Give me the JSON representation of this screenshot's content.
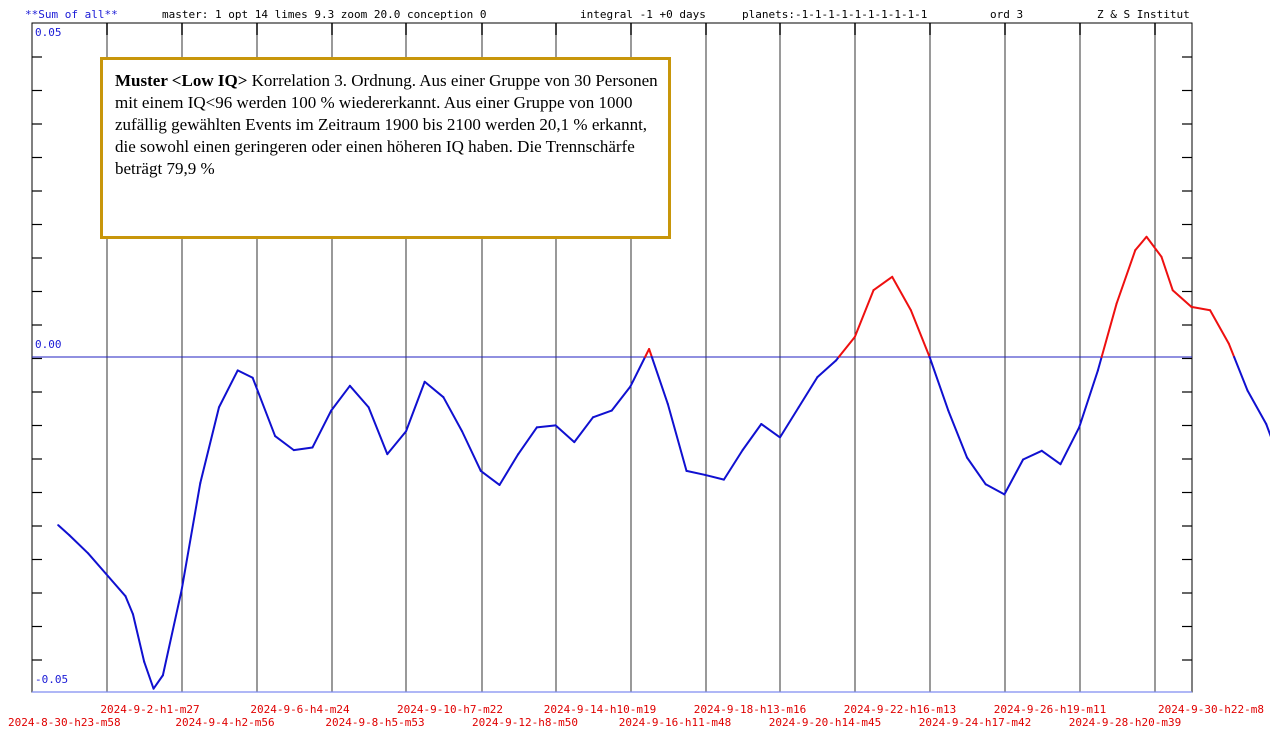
{
  "header": {
    "series_label": "**Sum of all**",
    "params": "master: 1  opt 14 limes 9.3 zoom 20.0 conception 0",
    "integral": "integral -1 +0 days",
    "planets": "planets:-1-1-1-1-1-1-1-1-1-1",
    "ord": "ord 3",
    "institute": "Z & S Institut"
  },
  "annotation": {
    "bold": "Muster <Low IQ>",
    "text": " Korrelation 3. Ordnung. Aus einer Gruppe von 30 Personen mit einem IQ<96  werden 100 % wiedererkannt. Aus einer Gruppe von 1000 zufällig gewählten Events im Zeitraum 1900 bis 2100 werden 20,1 % erkannt, die sowohl einen geringeren oder einen höheren IQ haben. Die Trennschärfe beträgt 79,9 %"
  },
  "colors": {
    "line_below": "#1010d0",
    "line_above": "#ee1010",
    "axis_labels": "#1a1ad6",
    "date_labels": "#e00000",
    "annotation_border": "#c8960a"
  },
  "chart_data": {
    "type": "line",
    "ylim": [
      -0.05,
      0.05
    ],
    "y_tick_labels": [
      "0.05",
      "0.00",
      "-0.05"
    ],
    "x_tick_labels": [
      "2024-8-30-h23-m58",
      "2024-9-2-h1-m27",
      "2024-9-4-h2-m56",
      "2024-9-6-h4-m24",
      "2024-9-8-h5-m53",
      "2024-9-10-h7-m22",
      "2024-9-12-h8-m50",
      "2024-9-14-h10-m19",
      "2024-9-16-h11-m48",
      "2024-9-18-h13-m16",
      "2024-9-20-h14-m45",
      "2024-9-22-h16-m13",
      "2024-9-24-h17-m42",
      "2024-9-26-h19-m11",
      "2024-9-28-h20-m39",
      "2024-9-30-h22-m8"
    ],
    "x_range": [
      "2024-8-30-h23-m58",
      "2024-9-30-h22-m8"
    ],
    "grid": "vertical lines at each date tick; horizontal zero line",
    "series": [
      {
        "color_rule": "red where value > 0, blue where value <= 0",
        "points": [
          {
            "t": 0.7,
            "v": -0.0251
          },
          {
            "t": 1.0,
            "v": -0.0266
          },
          {
            "t": 1.5,
            "v": -0.0293
          },
          {
            "t": 2.0,
            "v": -0.0325
          },
          {
            "t": 2.5,
            "v": -0.0357
          },
          {
            "t": 2.7,
            "v": -0.0384
          },
          {
            "t": 3.0,
            "v": -0.0455
          },
          {
            "t": 3.25,
            "v": -0.0495
          },
          {
            "t": 3.5,
            "v": -0.0475
          },
          {
            "t": 4.0,
            "v": -0.0348
          },
          {
            "t": 4.5,
            "v": -0.0188
          },
          {
            "t": 5.0,
            "v": -0.0075
          },
          {
            "t": 5.5,
            "v": -0.002
          },
          {
            "t": 5.9,
            "v": -0.0031
          },
          {
            "t": 6.5,
            "v": -0.0118
          },
          {
            "t": 7.0,
            "v": -0.0139
          },
          {
            "t": 7.5,
            "v": -0.0135
          },
          {
            "t": 8.0,
            "v": -0.008
          },
          {
            "t": 8.5,
            "v": -0.0043
          },
          {
            "t": 9.0,
            "v": -0.0075
          },
          {
            "t": 9.5,
            "v": -0.0145
          },
          {
            "t": 10.0,
            "v": -0.0111
          },
          {
            "t": 10.5,
            "v": -0.0037
          },
          {
            "t": 11.0,
            "v": -0.006
          },
          {
            "t": 11.5,
            "v": -0.0111
          },
          {
            "t": 12.0,
            "v": -0.017
          },
          {
            "t": 12.5,
            "v": -0.0191
          },
          {
            "t": 13.0,
            "v": -0.0145
          },
          {
            "t": 13.5,
            "v": -0.0105
          },
          {
            "t": 14.0,
            "v": -0.0102
          },
          {
            "t": 14.5,
            "v": -0.0127
          },
          {
            "t": 15.0,
            "v": -0.009
          },
          {
            "t": 15.5,
            "v": -0.008
          },
          {
            "t": 16.0,
            "v": -0.0044
          },
          {
            "t": 16.5,
            "v": 0.0012
          },
          {
            "t": 17.0,
            "v": -0.007
          },
          {
            "t": 17.5,
            "v": -0.017
          },
          {
            "t": 18.0,
            "v": -0.0176
          },
          {
            "t": 18.5,
            "v": -0.0183
          },
          {
            "t": 19.0,
            "v": -0.0139
          },
          {
            "t": 19.5,
            "v": -0.01
          },
          {
            "t": 20.0,
            "v": -0.012
          },
          {
            "t": 20.5,
            "v": -0.0075
          },
          {
            "t": 21.0,
            "v": -0.003
          },
          {
            "t": 21.5,
            "v": -0.0005
          },
          {
            "t": 22.0,
            "v": 0.003
          },
          {
            "t": 22.5,
            "v": 0.01
          },
          {
            "t": 23.0,
            "v": 0.012
          },
          {
            "t": 23.5,
            "v": 0.007
          },
          {
            "t": 24.0,
            "v": 0.0
          },
          {
            "t": 24.5,
            "v": -0.008
          },
          {
            "t": 25.0,
            "v": -0.015
          },
          {
            "t": 25.5,
            "v": -0.019
          },
          {
            "t": 26.0,
            "v": -0.0205
          },
          {
            "t": 26.5,
            "v": -0.0153
          },
          {
            "t": 27.0,
            "v": -0.014
          },
          {
            "t": 27.5,
            "v": -0.016
          },
          {
            "t": 28.0,
            "v": -0.0105
          },
          {
            "t": 28.5,
            "v": -0.002
          },
          {
            "t": 29.0,
            "v": 0.008
          },
          {
            "t": 29.5,
            "v": 0.016
          },
          {
            "t": 29.8,
            "v": 0.018
          },
          {
            "t": 30.2,
            "v": 0.015
          },
          {
            "t": 30.5,
            "v": 0.01
          },
          {
            "t": 31.0,
            "v": 0.0075
          },
          {
            "t": 31.5,
            "v": 0.007
          },
          {
            "t": 32.0,
            "v": 0.002
          },
          {
            "t": 32.5,
            "v": -0.005
          },
          {
            "t": 33.0,
            "v": -0.01
          },
          {
            "t": 33.5,
            "v": -0.0175
          }
        ]
      }
    ]
  }
}
